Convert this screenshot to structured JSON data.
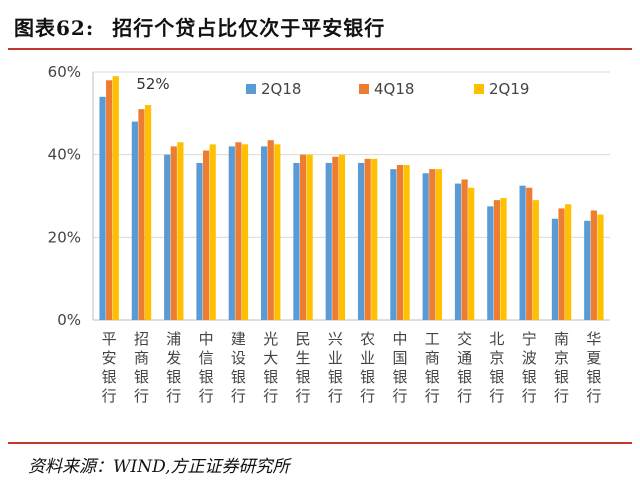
{
  "header": {
    "figure_label": "图表62:",
    "title": "招行个贷占比仅次于平安银行"
  },
  "footer": {
    "source": "资料来源：WIND,方正证券研究所"
  },
  "chart_data": {
    "type": "bar",
    "categories": [
      "平安银行",
      "招商银行",
      "浦发银行",
      "中信银行",
      "建设银行",
      "光大银行",
      "民生银行",
      "兴业银行",
      "农业银行",
      "中国银行",
      "工商银行",
      "交通银行",
      "北京银行",
      "宁波银行",
      "南京银行",
      "华夏银行"
    ],
    "series": [
      {
        "name": "2Q18",
        "color": "#5b9bd5",
        "values": [
          54,
          48,
          40,
          38,
          42,
          42,
          38,
          38,
          38,
          36.5,
          35.5,
          33,
          27.5,
          32.5,
          24.5,
          24
        ]
      },
      {
        "name": "4Q18",
        "color": "#ed7d31",
        "values": [
          58,
          51,
          42,
          41,
          43,
          43.5,
          40,
          39.5,
          39,
          37.5,
          36.5,
          34,
          29,
          32,
          27,
          26.5
        ]
      },
      {
        "name": "2Q19",
        "color": "#ffc000",
        "values": [
          59,
          52,
          43,
          42.5,
          42.5,
          42.5,
          40,
          40,
          39,
          37.5,
          36.5,
          32,
          29.5,
          29,
          28,
          25.5
        ]
      }
    ],
    "yticks": [
      "0%",
      "20%",
      "40%",
      "60%"
    ],
    "ylim": [
      0,
      60
    ],
    "annotations": [
      {
        "text": "52%"
      }
    ],
    "grid": true,
    "legend_position": "top-right"
  }
}
